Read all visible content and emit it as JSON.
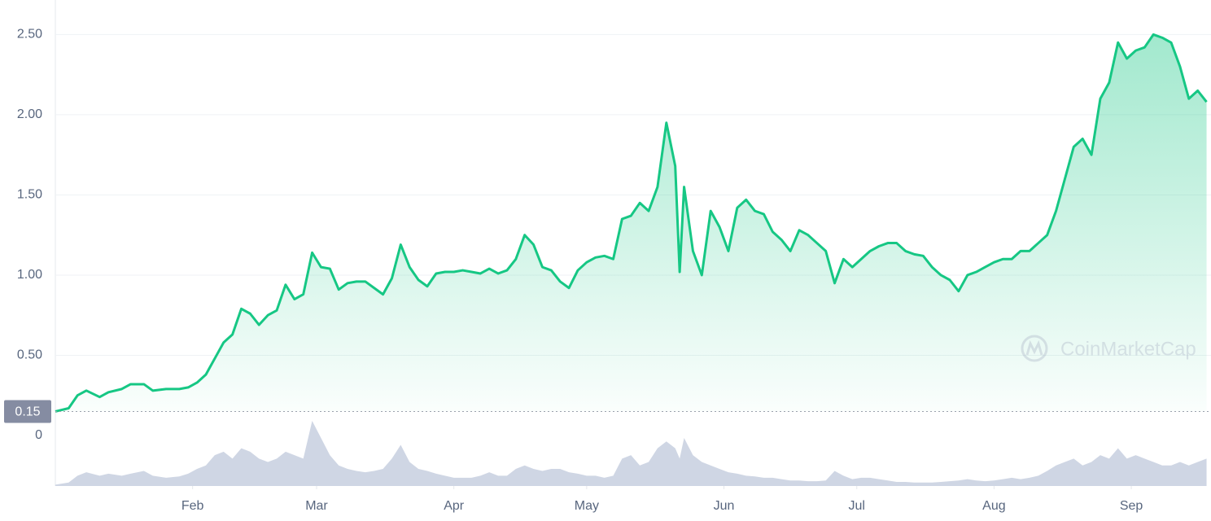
{
  "chart_data": {
    "type": "line",
    "watermark": "CoinMarketCap",
    "color": "#16c784",
    "volume_color": "#cfd6e4",
    "grid": true,
    "start_value": 0.15,
    "xlim": [
      0,
      261
    ],
    "ylim": [
      0,
      2.7
    ],
    "yticks": [
      0,
      {
        "value": 0.5,
        "label": "0.50"
      },
      {
        "value": 1,
        "label": "1.00"
      },
      {
        "value": 1.5,
        "label": "1.50"
      },
      {
        "value": 2,
        "label": "2.00"
      },
      {
        "value": 2.5,
        "label": "2.50"
      }
    ],
    "xticks": [
      {
        "value": 31,
        "label": "Feb"
      },
      {
        "value": 59,
        "label": "Mar"
      },
      {
        "value": 90,
        "label": "Apr"
      },
      {
        "value": 120,
        "label": "May"
      },
      {
        "value": 151,
        "label": "Jun"
      },
      {
        "value": 181,
        "label": "Jul"
      },
      {
        "value": 212,
        "label": "Aug"
      },
      {
        "value": 243,
        "label": "Sep"
      }
    ],
    "x": [
      0,
      3,
      5,
      7,
      10,
      12,
      15,
      17,
      20,
      22,
      25,
      28,
      30,
      32,
      34,
      36,
      38,
      40,
      42,
      44,
      46,
      48,
      50,
      52,
      54,
      56,
      58,
      60,
      62,
      64,
      66,
      68,
      70,
      72,
      74,
      76,
      78,
      80,
      82,
      84,
      86,
      88,
      90,
      92,
      94,
      96,
      98,
      100,
      102,
      104,
      106,
      108,
      110,
      112,
      114,
      116,
      118,
      120,
      122,
      124,
      126,
      128,
      130,
      132,
      134,
      136,
      138,
      140,
      141,
      142,
      144,
      146,
      148,
      150,
      152,
      154,
      156,
      158,
      160,
      162,
      164,
      166,
      168,
      170,
      172,
      174,
      176,
      178,
      180,
      182,
      184,
      186,
      188,
      190,
      192,
      194,
      196,
      198,
      200,
      202,
      204,
      206,
      208,
      210,
      212,
      214,
      216,
      218,
      220,
      222,
      224,
      226,
      228,
      230,
      232,
      234,
      236,
      238,
      240,
      242,
      244,
      246,
      248,
      250,
      252,
      254,
      256,
      258,
      260
    ],
    "values": [
      0.15,
      0.17,
      0.25,
      0.28,
      0.24,
      0.27,
      0.29,
      0.32,
      0.32,
      0.28,
      0.29,
      0.29,
      0.3,
      0.33,
      0.38,
      0.48,
      0.58,
      0.63,
      0.79,
      0.76,
      0.69,
      0.75,
      0.78,
      0.94,
      0.85,
      0.88,
      1.14,
      1.05,
      1.04,
      0.91,
      0.95,
      0.96,
      0.96,
      0.92,
      0.88,
      0.98,
      1.19,
      1.05,
      0.97,
      0.93,
      1.01,
      1.02,
      1.02,
      1.03,
      1.02,
      1.01,
      1.04,
      1.01,
      1.03,
      1.1,
      1.25,
      1.19,
      1.05,
      1.03,
      0.96,
      0.92,
      1.03,
      1.08,
      1.11,
      1.12,
      1.1,
      1.35,
      1.37,
      1.45,
      1.4,
      1.55,
      1.95,
      1.68,
      1.02,
      1.55,
      1.15,
      1.0,
      1.4,
      1.3,
      1.15,
      1.42,
      1.47,
      1.4,
      1.38,
      1.27,
      1.22,
      1.15,
      1.28,
      1.25,
      1.2,
      1.15,
      0.95,
      1.1,
      1.05,
      1.1,
      1.15,
      1.18,
      1.2,
      1.2,
      1.15,
      1.13,
      1.12,
      1.05,
      1.0,
      0.97,
      0.9,
      1.0,
      1.02,
      1.05,
      1.08,
      1.1,
      1.1,
      1.15,
      1.15,
      1.2,
      1.25,
      1.4,
      1.6,
      1.8,
      1.85,
      1.75,
      2.1,
      2.2,
      2.45,
      2.35,
      2.4,
      2.42,
      2.5,
      2.48,
      2.45,
      2.3,
      2.1,
      2.15,
      2.08
    ],
    "volume": [
      2,
      5,
      15,
      20,
      15,
      18,
      15,
      18,
      22,
      15,
      12,
      14,
      18,
      25,
      30,
      45,
      50,
      40,
      55,
      50,
      40,
      35,
      40,
      50,
      45,
      40,
      95,
      70,
      45,
      30,
      25,
      22,
      20,
      22,
      25,
      40,
      60,
      35,
      25,
      22,
      18,
      15,
      12,
      12,
      12,
      15,
      20,
      15,
      15,
      25,
      30,
      25,
      22,
      25,
      25,
      20,
      18,
      15,
      15,
      12,
      15,
      40,
      45,
      30,
      35,
      55,
      65,
      55,
      40,
      70,
      45,
      35,
      30,
      25,
      20,
      18,
      15,
      14,
      12,
      12,
      10,
      8,
      8,
      7,
      7,
      8,
      22,
      15,
      10,
      12,
      12,
      10,
      8,
      6,
      6,
      5,
      5,
      5,
      6,
      7,
      8,
      10,
      8,
      7,
      8,
      10,
      12,
      10,
      12,
      15,
      22,
      30,
      35,
      40,
      30,
      35,
      45,
      40,
      55,
      40,
      45,
      40,
      35,
      30,
      30,
      35,
      30,
      35,
      40
    ]
  }
}
